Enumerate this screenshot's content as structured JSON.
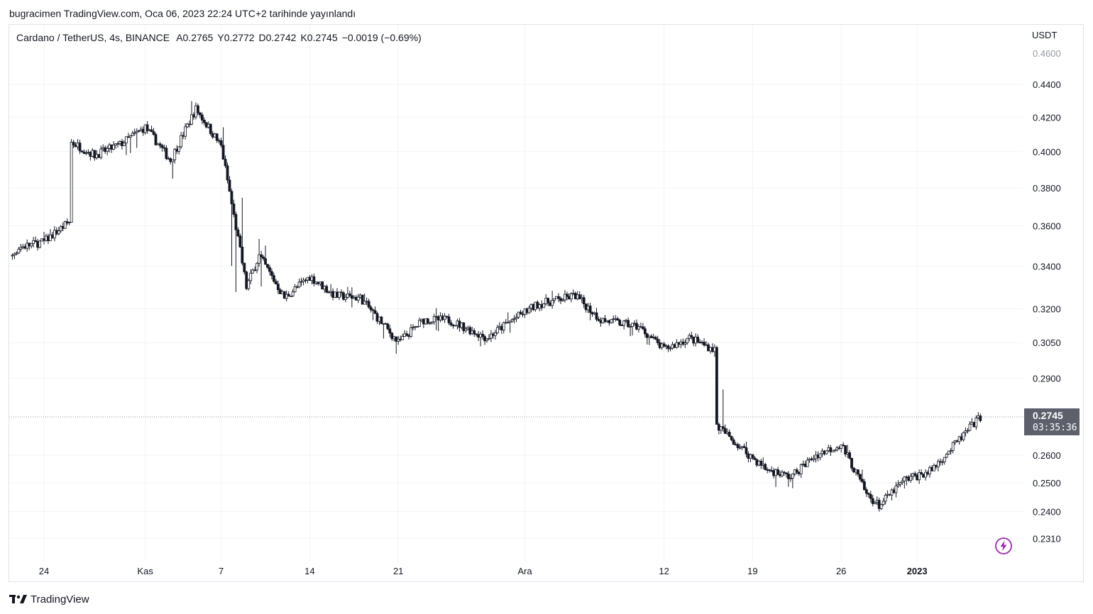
{
  "header": {
    "publish_text": "bugracimen TradingView.com, Oca 06, 2023 22:24 UTC+2 tarihinde yayınlandı"
  },
  "legend": {
    "symbol": "Cardano / TetherUS, 4s, BINANCE",
    "open": "A0.2765",
    "high": "Y0.2772",
    "low": "D0.2742",
    "close": "K0.2745",
    "change": "−0.0019 (−0.69%)"
  },
  "price_axis": {
    "unit": "USDT",
    "ticks": [
      "0.4400",
      "0.4200",
      "0.4000",
      "0.3800",
      "0.3600",
      "0.3400",
      "0.3200",
      "0.3050",
      "0.2900",
      "0.2600",
      "0.2500",
      "0.2400",
      "0.2310"
    ],
    "cut_tick": "0.4600"
  },
  "time_axis": {
    "labels": [
      "24",
      "Kas",
      "7",
      "14",
      "21",
      "Ara",
      "12",
      "19",
      "26",
      "2023"
    ]
  },
  "last_price": {
    "value": "0.2745",
    "countdown": "03:35:36"
  },
  "brand": {
    "name": "TradingView"
  },
  "colors": {
    "candle": "#131722",
    "grid": "#f0f3fa",
    "price_tag": "#5d606b",
    "flash_icon": "#9c27b0"
  },
  "chart_data": {
    "type": "candlestick",
    "symbol": "Cardano / TetherUS, 4s, BINANCE",
    "interval": "4s",
    "y_scale": "log",
    "ylim": [
      0.224,
      0.466
    ],
    "x": [
      "2022-10-20",
      "2022-10-22",
      "2022-10-24",
      "2022-10-26",
      "2022-10-26",
      "2022-10-28",
      "2022-10-30",
      "2022-11-01",
      "2022-11-03",
      "2022-11-05",
      "2022-11-07",
      "2022-11-08",
      "2022-11-09",
      "2022-11-10",
      "2022-11-12",
      "2022-11-14",
      "2022-11-16",
      "2022-11-18",
      "2022-11-21",
      "2022-11-23",
      "2022-11-25",
      "2022-11-28",
      "2022-11-30",
      "2022-12-02",
      "2022-12-05",
      "2022-12-07",
      "2022-12-10",
      "2022-12-12",
      "2022-12-14",
      "2022-12-16",
      "2022-12-16",
      "2022-12-18",
      "2022-12-20",
      "2022-12-22",
      "2022-12-24",
      "2022-12-26",
      "2022-12-28",
      "2022-12-29",
      "2022-12-31",
      "2023-01-02",
      "2023-01-04",
      "2023-01-06"
    ],
    "close": [
      0.334,
      0.349,
      0.352,
      0.362,
      0.406,
      0.398,
      0.404,
      0.414,
      0.395,
      0.425,
      0.403,
      0.365,
      0.33,
      0.345,
      0.325,
      0.335,
      0.326,
      0.325,
      0.305,
      0.315,
      0.315,
      0.307,
      0.315,
      0.322,
      0.326,
      0.315,
      0.312,
      0.302,
      0.307,
      0.302,
      0.272,
      0.263,
      0.255,
      0.252,
      0.26,
      0.264,
      0.246,
      0.242,
      0.251,
      0.254,
      0.264,
      0.2745
    ],
    "high": [
      0.339,
      0.353,
      0.356,
      0.366,
      0.418,
      0.41,
      0.44,
      0.422,
      0.405,
      0.437,
      0.418,
      0.412,
      0.379,
      0.356,
      0.338,
      0.339,
      0.33,
      0.331,
      0.311,
      0.32,
      0.321,
      0.312,
      0.321,
      0.328,
      0.329,
      0.32,
      0.318,
      0.318,
      0.315,
      0.305,
      0.305,
      0.268,
      0.259,
      0.255,
      0.263,
      0.266,
      0.255,
      0.244,
      0.253,
      0.257,
      0.268,
      0.276
    ],
    "low": [
      0.33,
      0.345,
      0.348,
      0.36,
      0.393,
      0.38,
      0.394,
      0.398,
      0.38,
      0.405,
      0.39,
      0.308,
      0.315,
      0.322,
      0.316,
      0.31,
      0.319,
      0.32,
      0.296,
      0.306,
      0.31,
      0.301,
      0.309,
      0.316,
      0.32,
      0.308,
      0.306,
      0.298,
      0.301,
      0.3,
      0.255,
      0.25,
      0.248,
      0.247,
      0.256,
      0.259,
      0.244,
      0.239,
      0.247,
      0.251,
      0.258,
      0.266
    ]
  }
}
